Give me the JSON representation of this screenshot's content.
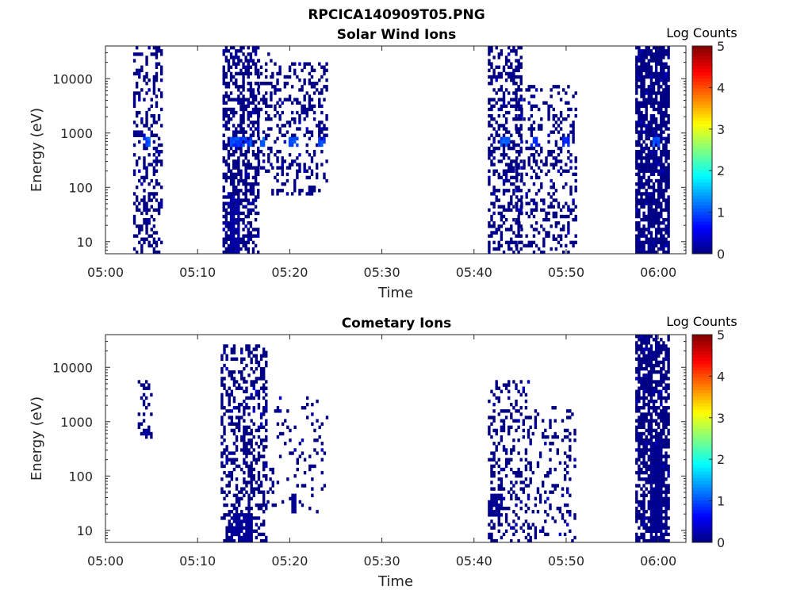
{
  "figure": {
    "title": "RPCICA140909T05.PNG"
  },
  "chart_data": [
    {
      "type": "heatmap",
      "title": "Solar Wind Ions",
      "xlabel": "Time",
      "ylabel": "Energy (eV)",
      "x_ticks": [
        "05:00",
        "05:10",
        "05:20",
        "05:30",
        "05:40",
        "05:50",
        "06:00"
      ],
      "x_tick_minutes": [
        0,
        10,
        20,
        30,
        40,
        50,
        60
      ],
      "xlim_minutes": [
        0,
        63
      ],
      "y_scale": "log",
      "y_ticks": [
        "10",
        "100",
        "1000",
        "10000"
      ],
      "y_tick_values": [
        10,
        100,
        1000,
        10000
      ],
      "ylim": [
        6,
        40000
      ],
      "colorbar": {
        "label": "Log Counts",
        "ticks": [
          "0",
          "1",
          "2",
          "3",
          "4",
          "5"
        ],
        "range": [
          0,
          5
        ],
        "colormap": "jet"
      },
      "clusters": [
        {
          "t": [
            3.0,
            6.2
          ],
          "e": [
            6,
            40000
          ],
          "density": 0.35,
          "dense_bins": [
            [
              4.0,
              5.0,
              550,
              800,
              1.2
            ]
          ]
        },
        {
          "t": [
            12.7,
            16.5
          ],
          "e": [
            6,
            40000
          ],
          "density": 0.55,
          "dense_bins": [
            [
              13.5,
              16.0,
              550,
              800,
              1.1
            ],
            [
              13.4,
              14.6,
              6,
              60,
              0.2
            ]
          ]
        },
        {
          "t": [
            16.5,
            18.0
          ],
          "e": [
            200,
            30000
          ],
          "density": 0.3,
          "dense_bins": [
            [
              16.8,
              17.4,
              550,
              800,
              1.2
            ]
          ]
        },
        {
          "t": [
            18.0,
            24.0
          ],
          "e": [
            70,
            20000
          ],
          "density": 0.25,
          "dense_bins": [
            [
              20.0,
              21.0,
              550,
              800,
              1.1
            ],
            [
              23.0,
              24.0,
              550,
              800,
              1.1
            ]
          ]
        },
        {
          "t": [
            41.5,
            45.0
          ],
          "e": [
            6,
            40000
          ],
          "density": 0.4,
          "dense_bins": [
            [
              42.8,
              43.8,
              550,
              800,
              1.2
            ]
          ]
        },
        {
          "t": [
            44.5,
            51.0
          ],
          "e": [
            6,
            8000
          ],
          "density": 0.25,
          "dense_bins": [
            [
              46.0,
              47.0,
              550,
              800,
              1.0
            ],
            [
              49.5,
              50.5,
              550,
              800,
              1.0
            ]
          ]
        },
        {
          "t": [
            57.5,
            61.0
          ],
          "e": [
            6,
            40000
          ],
          "density": 0.8,
          "dense_bins": [
            [
              59.3,
              60.3,
              550,
              800,
              1.2
            ]
          ]
        }
      ]
    },
    {
      "type": "heatmap",
      "title": "Cometary Ions",
      "xlabel": "Time",
      "ylabel": "Energy (eV)",
      "x_ticks": [
        "05:00",
        "05:10",
        "05:20",
        "05:30",
        "05:40",
        "05:50",
        "06:00"
      ],
      "x_tick_minutes": [
        0,
        10,
        20,
        30,
        40,
        50,
        60
      ],
      "xlim_minutes": [
        0,
        63
      ],
      "y_scale": "log",
      "y_ticks": [
        "10",
        "100",
        "1000",
        "10000"
      ],
      "y_tick_values": [
        10,
        100,
        1000,
        10000
      ],
      "ylim": [
        6,
        40000
      ],
      "colorbar": {
        "label": "Log Counts",
        "ticks": [
          "0",
          "1",
          "2",
          "3",
          "4",
          "5"
        ],
        "range": [
          0,
          5
        ],
        "colormap": "jet"
      },
      "clusters": [
        {
          "t": [
            3.5,
            5.0
          ],
          "e": [
            500,
            6000
          ],
          "density": 0.25,
          "dense_bins": [
            [
              4.0,
              4.8,
              550,
              700,
              0.15
            ]
          ]
        },
        {
          "t": [
            12.5,
            17.5
          ],
          "e": [
            6,
            25000
          ],
          "density": 0.4,
          "dense_bins": [
            [
              13.5,
              16.0,
              6,
              20,
              0.15
            ]
          ]
        },
        {
          "t": [
            17.5,
            24.0
          ],
          "e": [
            20,
            3000
          ],
          "density": 0.1,
          "dense_bins": [
            [
              20.2,
              20.6,
              20,
              45,
              0.1
            ]
          ]
        },
        {
          "t": [
            41.5,
            46.0
          ],
          "e": [
            6,
            6000
          ],
          "density": 0.3,
          "dense_bins": [
            [
              41.5,
              43.0,
              18,
              45,
              0.1
            ]
          ]
        },
        {
          "t": [
            46.0,
            51.0
          ],
          "e": [
            6,
            2000
          ],
          "density": 0.15,
          "dense_bins": []
        },
        {
          "t": [
            57.5,
            61.0
          ],
          "e": [
            6,
            40000
          ],
          "density": 0.7,
          "dense_bins": [
            [
              59.0,
              60.5,
              6,
              500,
              0.1
            ]
          ]
        }
      ]
    }
  ]
}
